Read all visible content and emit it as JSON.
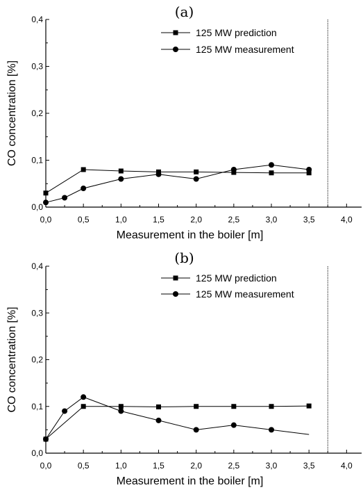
{
  "chart_data": [
    {
      "type": "line",
      "panel_label": "(a)",
      "xlabel": "Measurement in the boiler [m]",
      "ylabel": "CO concentration [%]",
      "xlim": [
        0,
        4.2
      ],
      "ylim": [
        0,
        0.4
      ],
      "x_ticks": [
        0,
        0.5,
        1.0,
        1.5,
        2.0,
        2.5,
        3.0,
        3.5,
        4.0
      ],
      "x_tick_labels": [
        "0,0",
        "0,5",
        "1,0",
        "1,5",
        "2,0",
        "2,5",
        "3,0",
        "3,5",
        "4,0"
      ],
      "y_ticks": [
        0,
        0.1,
        0.2,
        0.3,
        0.4
      ],
      "y_tick_labels": [
        "0,0",
        "0,1",
        "0,2",
        "0,3",
        "0,4"
      ],
      "vertical_line_x": 3.75,
      "legend_position": "top-right",
      "series": [
        {
          "name": "125 MW prediction",
          "marker": "square",
          "x": [
            0,
            0.5,
            1.0,
            1.5,
            2.0,
            2.5,
            3.0,
            3.5
          ],
          "y": [
            0.03,
            0.08,
            0.077,
            0.075,
            0.075,
            0.074,
            0.073,
            0.073
          ]
        },
        {
          "name": "125 MW measurement",
          "marker": "circle",
          "x": [
            0,
            0.25,
            0.5,
            1.0,
            1.5,
            2.0,
            2.5,
            3.0,
            3.5
          ],
          "y": [
            0.01,
            0.02,
            0.04,
            0.06,
            0.07,
            0.06,
            0.08,
            0.09,
            0.08
          ]
        }
      ]
    },
    {
      "type": "line",
      "panel_label": "(b)",
      "xlabel": "Measurement in the boiler [m]",
      "ylabel": "CO concentration [%]",
      "xlim": [
        0,
        4.2
      ],
      "ylim": [
        0,
        0.4
      ],
      "x_ticks": [
        0,
        0.5,
        1.0,
        1.5,
        2.0,
        2.5,
        3.0,
        3.5,
        4.0
      ],
      "x_tick_labels": [
        "0,0",
        "0,5",
        "1,0",
        "1,5",
        "2,0",
        "2,5",
        "3,0",
        "3,5",
        "4,0"
      ],
      "y_ticks": [
        0,
        0.1,
        0.2,
        0.3,
        0.4
      ],
      "y_tick_labels": [
        "0,0",
        "0,1",
        "0,2",
        "0,3",
        "0,4"
      ],
      "vertical_line_x": 3.75,
      "legend_position": "top-right",
      "series": [
        {
          "name": "125 MW prediction",
          "marker": "square",
          "x": [
            0,
            0.5,
            1.0,
            1.5,
            2.0,
            2.5,
            3.0,
            3.5
          ],
          "y": [
            0.03,
            0.1,
            0.1,
            0.099,
            0.1,
            0.1,
            0.1,
            0.101
          ]
        },
        {
          "name": "125 MW measurement",
          "marker": "circle",
          "x": [
            0,
            0.25,
            0.5,
            1.0,
            1.5,
            2.0,
            2.5,
            3.0,
            3.5
          ],
          "y": [
            0.03,
            0.09,
            0.12,
            0.09,
            0.07,
            0.05,
            0.06,
            0.05,
            0.04
          ],
          "marker_points": 8
        }
      ]
    }
  ]
}
